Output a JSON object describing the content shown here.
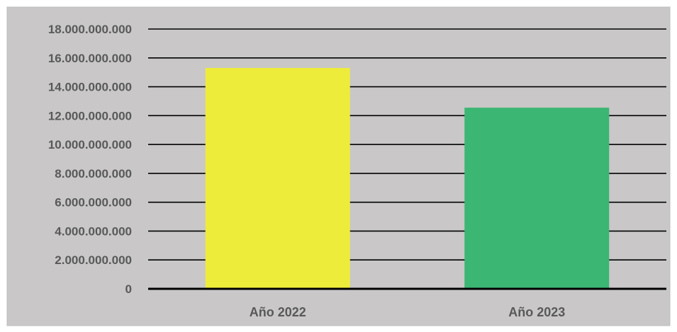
{
  "chart_data": {
    "type": "bar",
    "title": "",
    "xlabel": "",
    "ylabel": "",
    "categories": [
      "Año 2022",
      "Año 2023"
    ],
    "values": [
      15300000000,
      12550000000
    ],
    "ylim": [
      0,
      18000000000
    ],
    "y_ticks": [
      "0",
      "2.000.000.000",
      "4.000.000.000",
      "6.000.000.000",
      "8.000.000.000",
      "10.000.000.000",
      "12.000.000.000",
      "14.000.000.000",
      "16.000.000.000",
      "18.000.000.000"
    ],
    "grid": true,
    "legend": "none"
  },
  "colors": {
    "background": "#c9c7c7",
    "gridline": "#000000",
    "axis": "#000000",
    "bar_colors": [
      "#eeec3a",
      "#3bb673"
    ],
    "text": "#595959"
  }
}
